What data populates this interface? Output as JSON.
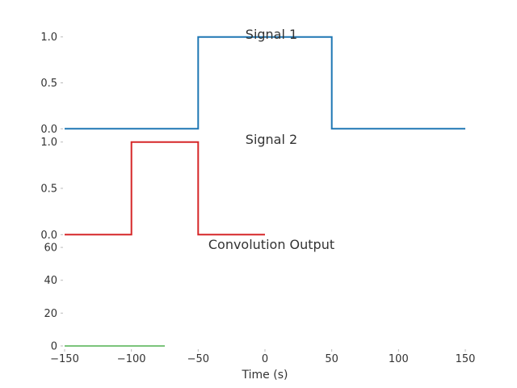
{
  "chart_data": [
    {
      "type": "line",
      "title": "Signal 1",
      "xlabel": "",
      "ylabel": "",
      "xlim": [
        -150,
        150
      ],
      "ylim": [
        -0.05,
        1.05
      ],
      "yticks": [
        0.0,
        0.5,
        1.0
      ],
      "ytick_labels": [
        "0.0",
        "0.5",
        "1.0"
      ],
      "grid": false,
      "series": [
        {
          "color": "#1f77b4",
          "x": [
            -150,
            -50,
            -50,
            50,
            50,
            150
          ],
          "y": [
            0,
            0,
            1,
            1,
            0,
            0
          ]
        }
      ]
    },
    {
      "type": "line",
      "title": "Signal 2",
      "xlabel": "",
      "ylabel": "",
      "xlim": [
        -150,
        150
      ],
      "ylim": [
        -0.05,
        1.05
      ],
      "yticks": [
        0.0,
        0.5,
        1.0
      ],
      "ytick_labels": [
        "0.0",
        "0.5",
        "1.0"
      ],
      "grid": false,
      "series": [
        {
          "color": "#d62728",
          "x": [
            -150,
            -100,
            -100,
            -50,
            -50,
            0
          ],
          "y": [
            0,
            0,
            1,
            1,
            0,
            0
          ]
        }
      ]
    },
    {
      "type": "line",
      "title": "Convolution Output",
      "xlabel": "Time (s)",
      "ylabel": "",
      "xlim": [
        -150,
        150
      ],
      "ylim": [
        -1,
        63
      ],
      "yticks": [
        0,
        20,
        40,
        60
      ],
      "ytick_labels": [
        "0",
        "20",
        "40",
        "60"
      ],
      "xticks": [
        -150,
        -100,
        -50,
        0,
        50,
        100,
        150
      ],
      "xtick_labels": [
        "−150",
        "−100",
        "−50",
        "0",
        "50",
        "100",
        "150"
      ],
      "grid": false,
      "series": [
        {
          "color": "#2ca02c",
          "x": [
            -150,
            -75
          ],
          "y": [
            0,
            0
          ]
        }
      ]
    }
  ]
}
